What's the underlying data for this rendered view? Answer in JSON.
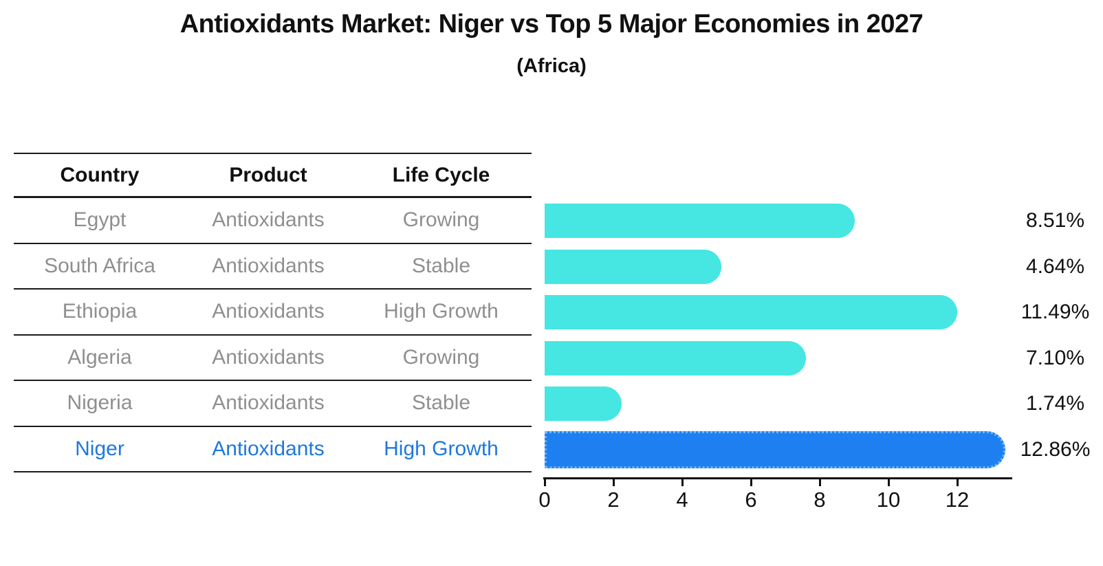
{
  "title": "Antioxidants Market: Niger vs Top 5 Major Economies in 2027",
  "subtitle": "(Africa)",
  "table": {
    "headers": [
      "Country",
      "Product",
      "Life Cycle"
    ],
    "rows": [
      {
        "country": "Egypt",
        "product": "Antioxidants",
        "life_cycle": "Growing",
        "value": 8.51,
        "value_label": "8.51%",
        "highlight": false
      },
      {
        "country": "South Africa",
        "product": "Antioxidants",
        "life_cycle": "Stable",
        "value": 4.64,
        "value_label": "4.64%",
        "highlight": false
      },
      {
        "country": "Ethiopia",
        "product": "Antioxidants",
        "life_cycle": "High Growth",
        "value": 11.49,
        "value_label": "11.49%",
        "highlight": false
      },
      {
        "country": "Algeria",
        "product": "Antioxidants",
        "life_cycle": "Growing",
        "value": 7.1,
        "value_label": "7.10%",
        "highlight": false
      },
      {
        "country": "Nigeria",
        "product": "Antioxidants",
        "life_cycle": "Stable",
        "value": 1.74,
        "value_label": "1.74%",
        "highlight": false
      },
      {
        "country": "Niger",
        "product": "Antioxidants",
        "life_cycle": "High Growth",
        "value": 12.86,
        "value_label": "12.86%",
        "highlight": true
      }
    ]
  },
  "chart_data": {
    "type": "bar",
    "orientation": "horizontal",
    "title": "Antioxidants Market: Niger vs Top 5 Major Economies in 2027",
    "subtitle": "(Africa)",
    "categories": [
      "Egypt",
      "South Africa",
      "Ethiopia",
      "Algeria",
      "Nigeria",
      "Niger"
    ],
    "values": [
      8.51,
      4.64,
      11.49,
      7.1,
      1.74,
      12.86
    ],
    "value_labels": [
      "8.51%",
      "4.64%",
      "11.49%",
      "7.10%",
      "1.74%",
      "12.86%"
    ],
    "xlabel": "",
    "ylabel": "",
    "xlim": [
      0,
      13.6
    ],
    "xticks": [
      0,
      2,
      4,
      6,
      8,
      10,
      12
    ],
    "grid": false,
    "legend": false,
    "highlight_index": 5
  },
  "colors": {
    "bar": "#46e6e2",
    "highlight_bar": "#1e80f0",
    "highlight_bar_border": "#6fb4f8",
    "highlight_text": "#1e78db",
    "row_text": "#8f8f8f",
    "header_text": "#111111",
    "axis": "#111111"
  }
}
